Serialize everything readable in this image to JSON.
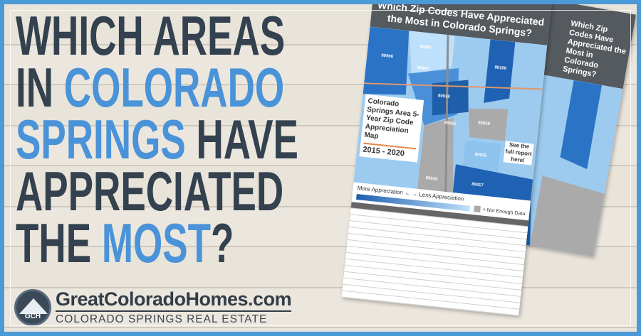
{
  "headline": {
    "line1": "WHICH AREAS",
    "line2a": "IN ",
    "line2b": "COLORADO",
    "line3a": "SPRINGS",
    "line3b": " HAVE",
    "line4": "APPRECIATED",
    "line5a": "THE ",
    "line5b": "MOST",
    "line5c": "?"
  },
  "colors": {
    "frame": "#4a9ad8",
    "dark": "#34414f",
    "accent": "#4a93d8"
  },
  "logo": {
    "badge": "GCH",
    "site": "GreatColoradoHomes.com",
    "tagline": "COLORADO SPRINGS REAL ESTATE"
  },
  "poster": {
    "title": "Which Zip Codes Have Appreciated the Most in Colorado Springs?",
    "map_title": "Colorado Springs Area 5-Year Zip Code Appreciation Map",
    "years": "2015 - 2020",
    "report": "See the full report here!",
    "more": "More Appreciation",
    "less": "Less Appreciation",
    "no_data": "= Not Enough Data",
    "zip_labels": [
      "80906",
      "80926",
      "80911",
      "80925",
      "80817",
      "80929",
      "80106",
      "80908",
      "80918",
      "80921"
    ]
  }
}
